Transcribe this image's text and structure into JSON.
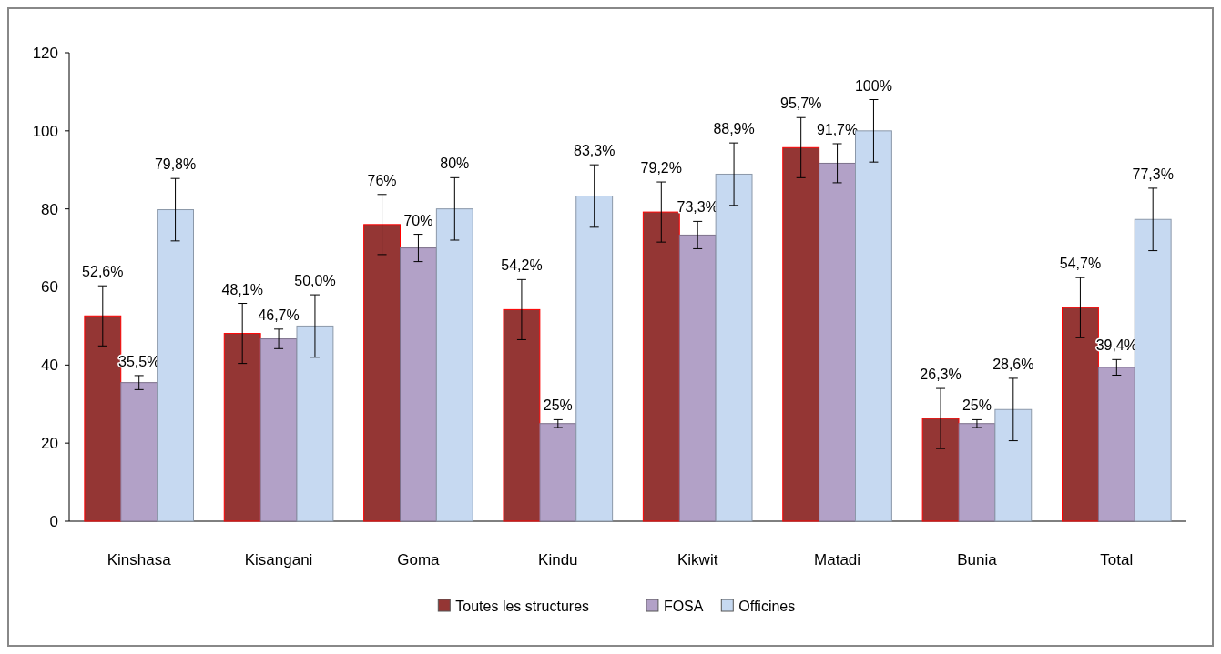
{
  "chart_data": {
    "type": "bar",
    "categories": [
      "Kinshasa",
      "Kisangani",
      "Goma",
      "Kindu",
      "Kikwit",
      "Matadi",
      "Bunia",
      "Total"
    ],
    "ylim": [
      0,
      120
    ],
    "yticks": [
      0,
      20,
      40,
      60,
      80,
      100,
      120
    ],
    "legend": "bottom",
    "series": [
      {
        "name": "Toutes les structures",
        "color": "#943634",
        "values": [
          52.6,
          48.1,
          76,
          54.2,
          79.2,
          95.7,
          26.3,
          54.7
        ],
        "errors": [
          7.7,
          7.7,
          7.7,
          7.7,
          7.7,
          7.7,
          7.7,
          7.7
        ],
        "value_labels": [
          "52,6%",
          "48,1%",
          "76%",
          "54,2%",
          "79,2%",
          "95,7%",
          "26,3%",
          "54,7%"
        ]
      },
      {
        "name": "FOSA",
        "color": "#b2a1c7",
        "values": [
          35.5,
          46.7,
          70,
          25,
          73.3,
          91.7,
          25,
          39.4
        ],
        "errors": [
          1.8,
          2.5,
          3.5,
          1,
          3.5,
          5,
          1,
          2
        ],
        "value_labels": [
          "35,5%",
          "46,7%",
          "70%",
          "25%",
          "73,3%",
          "91,7%",
          "25%",
          "39,4%"
        ]
      },
      {
        "name": "Officines",
        "color": "#c6d9f1",
        "values": [
          79.8,
          50.0,
          80,
          83.3,
          88.9,
          100,
          28.6,
          77.3
        ],
        "errors": [
          8,
          8,
          8,
          8,
          8,
          8,
          8,
          8
        ],
        "value_labels": [
          "79,8%",
          "50,0%",
          "80%",
          "83,3%",
          "88,9%",
          "100%",
          "28,6%",
          "77,3%"
        ]
      }
    ]
  }
}
